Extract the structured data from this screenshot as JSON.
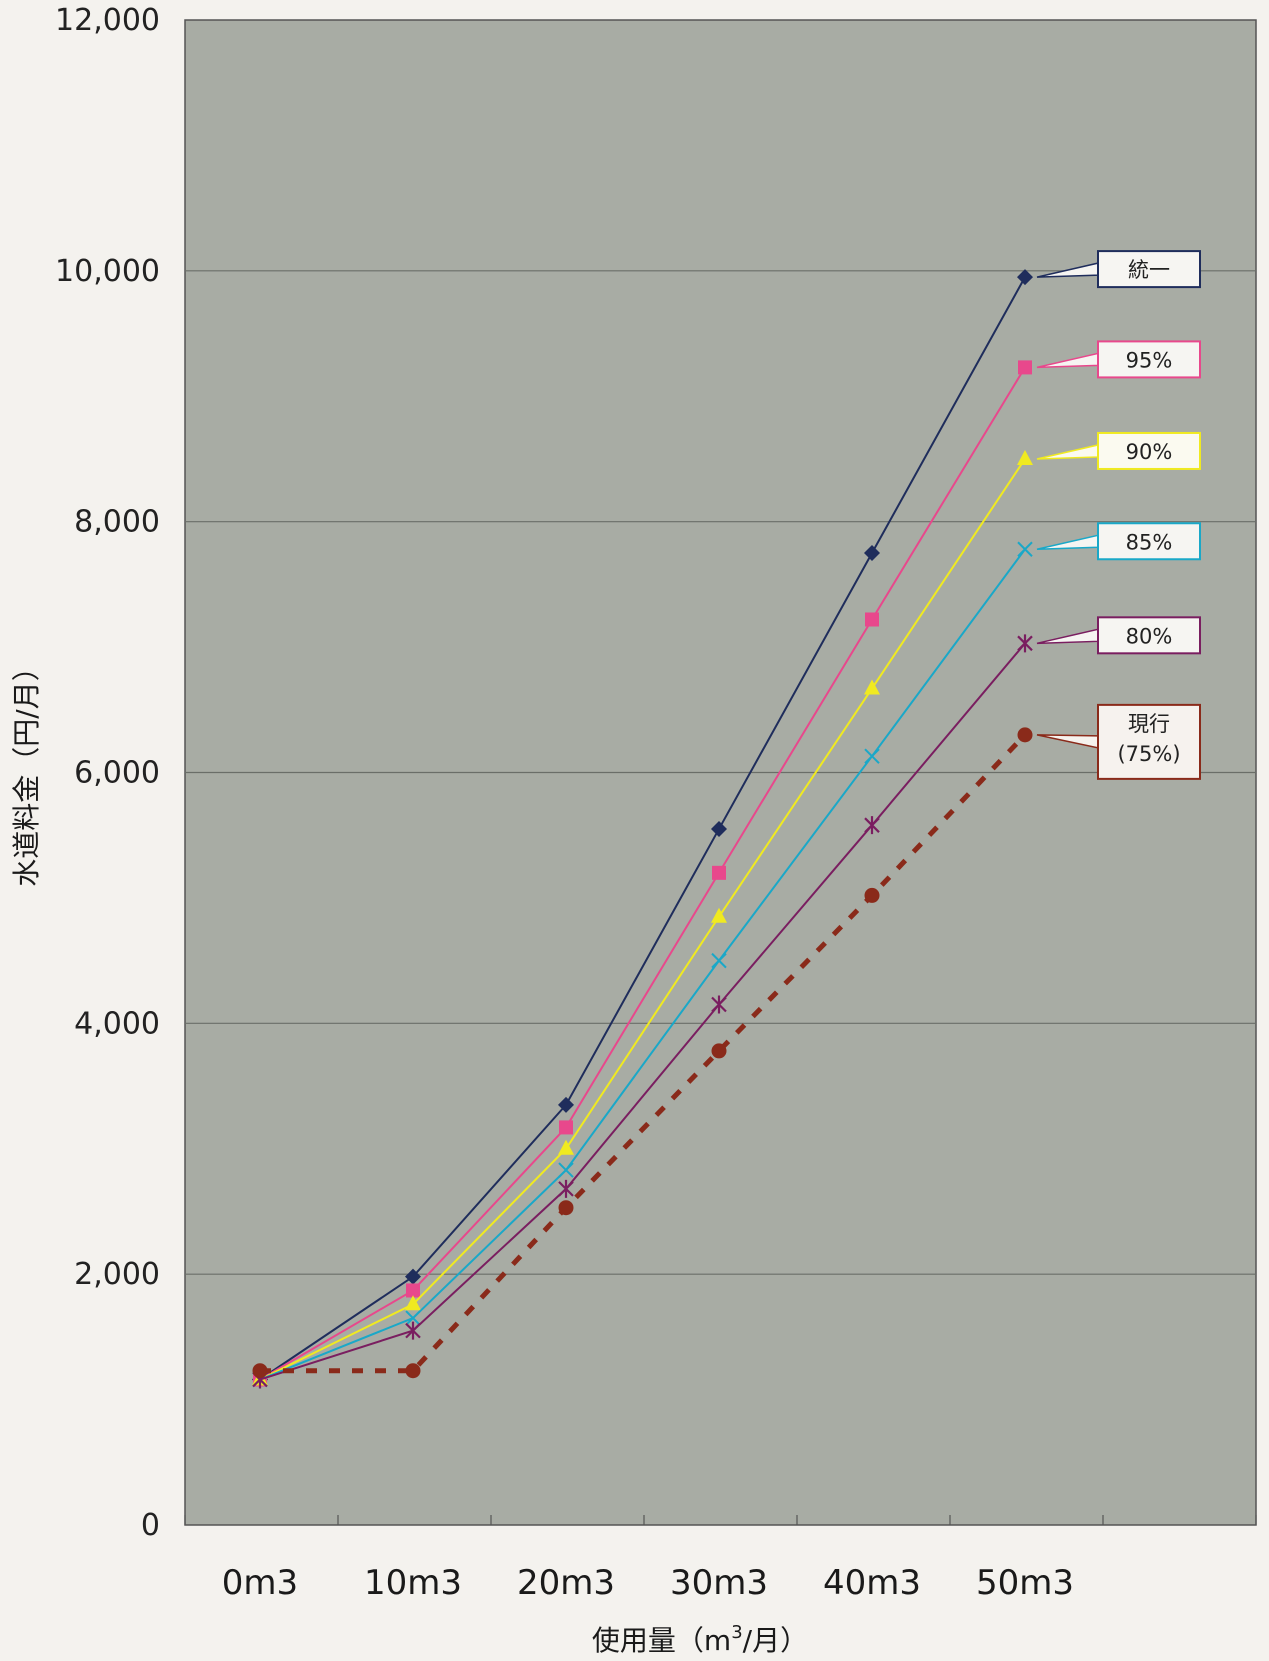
{
  "chart_data": {
    "type": "line",
    "ylabel": "水道料金（円/月）",
    "xlabel_main": "使用量（m",
    "xlabel_sup": "3",
    "xlabel_end": "/月）",
    "categories": [
      "0m3",
      "10m3",
      "20m3",
      "30m3",
      "40m3",
      "50m3"
    ],
    "ylim": [
      0,
      12000
    ],
    "yticks": [
      0,
      2000,
      4000,
      6000,
      8000,
      10000,
      12000
    ],
    "ytick_labels": [
      "0",
      "2,000",
      "4,000",
      "6,000",
      "8,000",
      "10,000",
      "12,000"
    ],
    "grid": "horizontal",
    "plot_background": "#a8aca4",
    "series": [
      {
        "name": "統一",
        "color": "#1f2d5c",
        "marker": "diamond",
        "dashed": false,
        "values": [
          1160,
          1980,
          3350,
          5550,
          7750,
          9950
        ]
      },
      {
        "name": "95%",
        "color": "#e8488c",
        "marker": "square",
        "dashed": false,
        "values": [
          1160,
          1870,
          3170,
          5200,
          7220,
          9230
        ]
      },
      {
        "name": "90%",
        "color": "#f0ea20",
        "marker": "triangle",
        "dashed": false,
        "values": [
          1160,
          1760,
          3000,
          4850,
          6670,
          8500
        ]
      },
      {
        "name": "85%",
        "color": "#1aa8c8",
        "marker": "x",
        "dashed": false,
        "values": [
          1160,
          1650,
          2830,
          4500,
          6130,
          7780
        ]
      },
      {
        "name": "80%",
        "color": "#7a1e60",
        "marker": "star",
        "dashed": false,
        "values": [
          1160,
          1550,
          2680,
          4150,
          5580,
          7030
        ]
      },
      {
        "name": "現行",
        "name2": "(75%)",
        "color": "#8a2a1a",
        "marker": "circle",
        "dashed": true,
        "values": [
          1230,
          1230,
          2530,
          3780,
          5020,
          6300
        ]
      }
    ]
  }
}
